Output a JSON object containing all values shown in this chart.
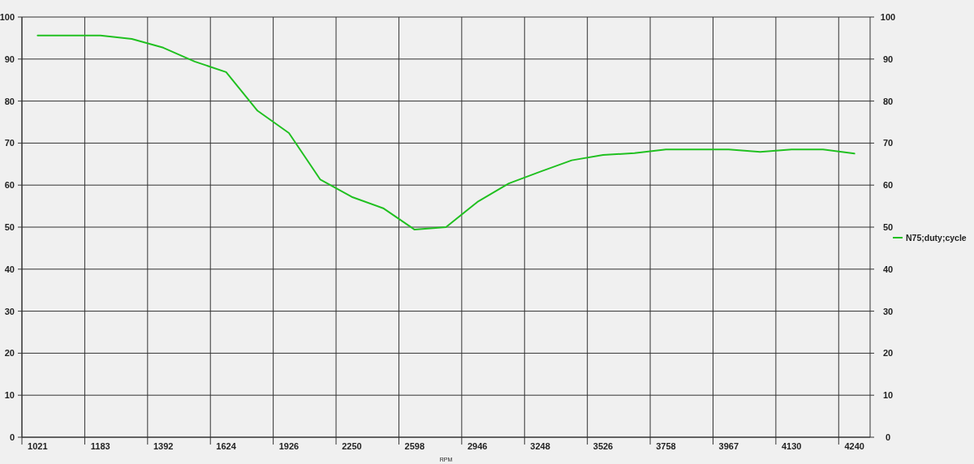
{
  "chart_data": {
    "type": "line",
    "xlabel": "RPM",
    "categories": [
      "1021",
      null,
      "1183",
      null,
      "1392",
      null,
      "1624",
      null,
      "1926",
      null,
      "2250",
      null,
      "2598",
      null,
      "2946",
      null,
      "3248",
      null,
      "3526",
      null,
      "3758",
      null,
      "3967",
      null,
      "4130",
      null,
      "4240"
    ],
    "series": [
      {
        "name": "N75;duty;cycle",
        "color": "#20c020",
        "values": [
          95.6,
          95.6,
          95.6,
          94.8,
          92.7,
          89.4,
          86.9,
          77.7,
          72.4,
          61.3,
          57.2,
          54.5,
          49.4,
          50.0,
          56.0,
          60.4,
          63.2,
          65.9,
          67.2,
          67.6,
          68.5,
          68.5,
          68.5,
          67.9,
          68.5,
          68.5,
          67.5
        ]
      }
    ],
    "ylim": [
      0,
      100
    ],
    "yticks": [
      0,
      10,
      20,
      30,
      40,
      50,
      60,
      70,
      80,
      90,
      100
    ],
    "y2lim": [
      0,
      100
    ],
    "y2ticks": [
      0,
      10,
      20,
      30,
      40,
      50,
      60,
      70,
      80,
      90,
      100
    ],
    "grid": true,
    "legend": "right",
    "line_style": "solid",
    "marker": "none"
  }
}
